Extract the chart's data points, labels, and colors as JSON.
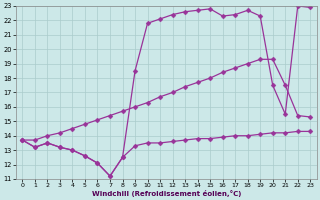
{
  "xlabel": "Windchill (Refroidissement éolien,°C)",
  "background_color": "#cce8e8",
  "grid_color": "#aacccc",
  "line_color": "#993399",
  "xlim": [
    -0.5,
    23.5
  ],
  "ylim": [
    11,
    23
  ],
  "yticks": [
    11,
    12,
    13,
    14,
    15,
    16,
    17,
    18,
    19,
    20,
    21,
    22,
    23
  ],
  "xticks": [
    0,
    1,
    2,
    3,
    4,
    5,
    6,
    7,
    8,
    9,
    10,
    11,
    12,
    13,
    14,
    15,
    16,
    17,
    18,
    19,
    20,
    21,
    22,
    23
  ],
  "line1_x": [
    0,
    1,
    2,
    3,
    4,
    5,
    6,
    7,
    8,
    9,
    10,
    11,
    12,
    13,
    14,
    15,
    16,
    17,
    18,
    19,
    20,
    21,
    22,
    23
  ],
  "line1_y": [
    13.7,
    13.2,
    13.5,
    13.2,
    13.0,
    12.6,
    12.1,
    11.2,
    12.5,
    13.3,
    13.5,
    13.5,
    13.6,
    13.7,
    13.8,
    13.8,
    13.9,
    14.0,
    14.0,
    14.1,
    14.2,
    14.2,
    14.3,
    14.3
  ],
  "line2_x": [
    0,
    1,
    2,
    3,
    4,
    5,
    6,
    7,
    8,
    9,
    10,
    11,
    12,
    13,
    14,
    15,
    16,
    17,
    18,
    19,
    20,
    21,
    22,
    23
  ],
  "line2_y": [
    13.7,
    13.2,
    13.5,
    13.2,
    13.0,
    12.6,
    12.1,
    11.2,
    12.5,
    18.5,
    21.8,
    22.1,
    22.4,
    22.6,
    22.7,
    22.8,
    22.3,
    22.4,
    22.7,
    22.3,
    17.5,
    15.5,
    23.0,
    22.9
  ],
  "line3_x": [
    0,
    1,
    2,
    3,
    4,
    5,
    6,
    7,
    8,
    9,
    10,
    11,
    12,
    13,
    14,
    15,
    16,
    17,
    18,
    19,
    20,
    21,
    22,
    23
  ],
  "line3_y": [
    13.7,
    13.7,
    14.0,
    14.2,
    14.5,
    14.8,
    15.1,
    15.4,
    15.7,
    16.0,
    16.3,
    16.7,
    17.0,
    17.4,
    17.7,
    18.0,
    18.4,
    18.7,
    19.0,
    19.3,
    19.3,
    17.5,
    15.4,
    15.3
  ]
}
